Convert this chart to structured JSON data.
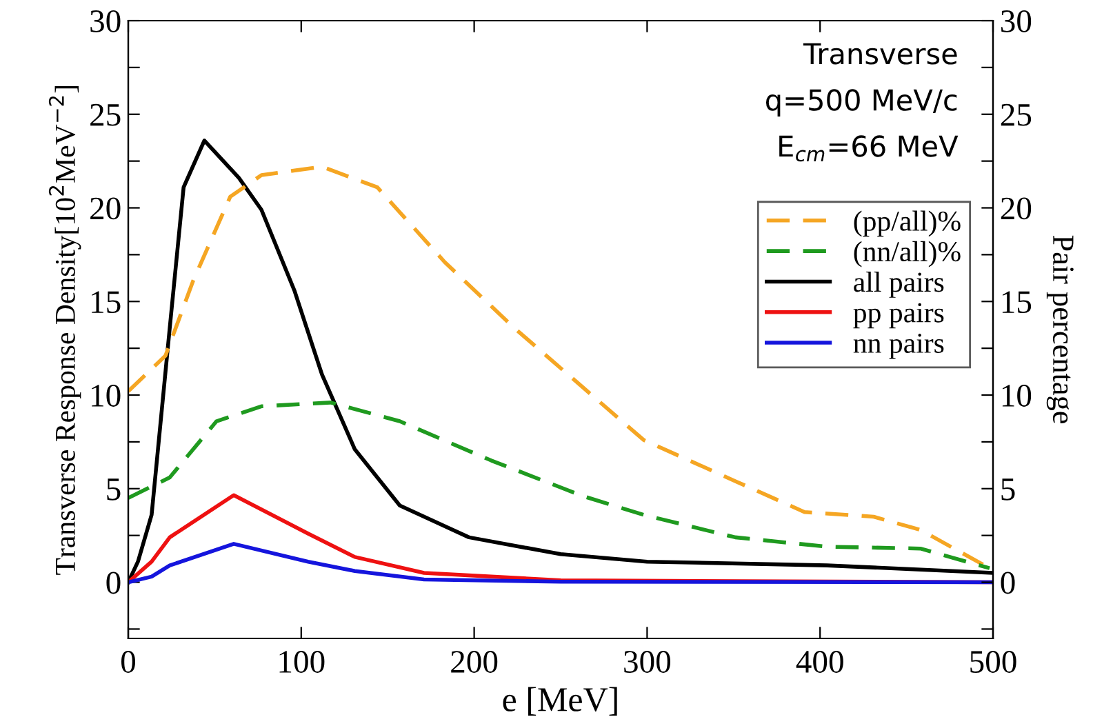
{
  "chart_data": {
    "type": "line",
    "xlabel": "e [MeV]",
    "ylabel": "Transverse Response Density[10$^{2}$MeV$^{−2}$]",
    "y2label": "Pair percentage",
    "annotations": [
      "Transverse",
      "q=500 MeV/c",
      "E$_{cm}$=66 MeV"
    ],
    "xlim": [
      0,
      500
    ],
    "xticks": [
      0,
      100,
      200,
      300,
      400,
      500
    ],
    "ylim": [
      -3,
      30
    ],
    "yticks": [
      {
        "value": -2.5,
        "label": null
      },
      0,
      {
        "value": 2.5,
        "label": null
      },
      5,
      {
        "value": 7.5,
        "label": null
      },
      10,
      {
        "value": 12.5,
        "label": null
      },
      15,
      {
        "value": 17.5,
        "label": null
      },
      20,
      {
        "value": 22.5,
        "label": null
      },
      25,
      {
        "value": 27.5,
        "label": null
      },
      30
    ],
    "y2lim": [
      -3,
      30
    ],
    "y2ticks": [
      {
        "value": -2.5,
        "label": null
      },
      0,
      {
        "value": 2.5,
        "label": null
      },
      5,
      {
        "value": 7.5,
        "label": null
      },
      10,
      {
        "value": 12.5,
        "label": null
      },
      15,
      {
        "value": 17.5,
        "label": null
      },
      20,
      {
        "value": 22.5,
        "label": null
      },
      25,
      {
        "value": 27.5,
        "label": null
      },
      30
    ],
    "legend": "top right",
    "grid": false,
    "marker": "none",
    "series": [
      {
        "name": "(pp/all)%",
        "color": "#f5a623",
        "axis": "y2",
        "line_style": "dashed",
        "x": [
          0,
          21.5,
          37.5,
          59,
          77,
          112,
          144,
          183,
          223,
          263,
          298,
          351,
          391,
          431,
          458,
          498
        ],
        "values": [
          10.2,
          12.1,
          16.1,
          20.6,
          21.75,
          22.2,
          21.1,
          17.1,
          13.6,
          10.4,
          7.6,
          5.4,
          3.75,
          3.5,
          2.8,
          0.75
        ]
      },
      {
        "name": "(nn/all)%",
        "color": "#1f9a1f",
        "axis": "y2",
        "line_style": "dashed",
        "x": [
          0,
          24,
          51,
          77,
          117,
          157,
          210,
          263,
          298,
          351,
          404,
          458,
          498
        ],
        "values": [
          4.5,
          5.6,
          8.6,
          9.4,
          9.6,
          8.6,
          6.5,
          4.6,
          3.6,
          2.4,
          1.9,
          1.8,
          0.75
        ]
      },
      {
        "name": "all pairs",
        "color": "#000000",
        "line_style": "solid",
        "x": [
          0,
          5.6,
          13.5,
          24,
          32,
          44,
          64,
          77,
          96,
          112,
          131,
          157,
          197,
          250,
          300,
          404,
          500
        ],
        "values": [
          0,
          1.1,
          3.6,
          13.6,
          21.1,
          23.6,
          21.6,
          19.9,
          15.6,
          11.1,
          7.1,
          4.1,
          2.4,
          1.5,
          1.1,
          0.9,
          0.5
        ]
      },
      {
        "name": "pp pairs",
        "color": "#ee1111",
        "line_style": "solid",
        "x": [
          0,
          13.5,
          24,
          61,
          104,
          131,
          171,
          250,
          500
        ],
        "values": [
          0,
          1.1,
          2.4,
          4.65,
          2.6,
          1.35,
          0.5,
          0.1,
          0
        ]
      },
      {
        "name": "nn pairs",
        "color": "#1515dd",
        "line_style": "solid",
        "x": [
          0,
          13.5,
          24,
          61,
          104,
          131,
          171,
          250,
          500
        ],
        "values": [
          0,
          0.3,
          0.9,
          2.05,
          1.1,
          0.6,
          0.15,
          0.03,
          0
        ]
      }
    ]
  }
}
